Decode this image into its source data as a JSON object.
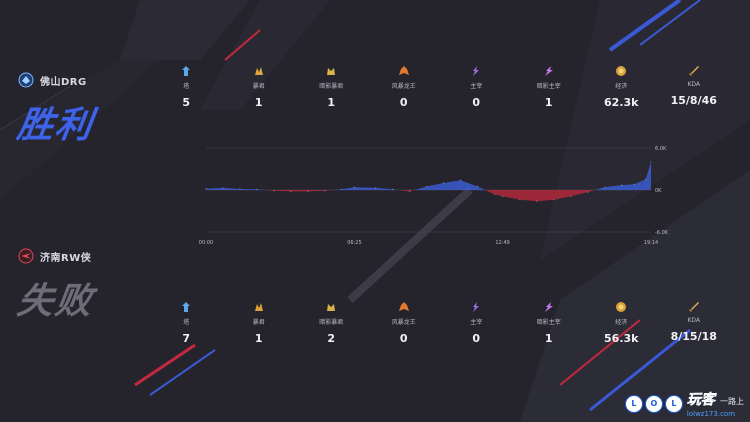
{
  "team_win": {
    "name": "佛山DRG",
    "result": "胜利",
    "logo": "drg-logo-icon"
  },
  "team_lose": {
    "name": "济南RW侠",
    "result": "失败",
    "logo": "rw-logo-icon"
  },
  "stat_labels": [
    "塔",
    "暴君",
    "暗影暴君",
    "风暴龙王",
    "主宰",
    "暗影主宰",
    "经济",
    "KDA"
  ],
  "stat_icons": [
    "tower-icon",
    "tyrant-icon",
    "shadow-tyrant-icon",
    "storm-dragon-icon",
    "overlord-icon",
    "shadow-overlord-icon",
    "gold-coin-icon",
    "sword-icon"
  ],
  "stats_win": [
    "5",
    "1",
    "1",
    "0",
    "0",
    "1",
    "62.3k",
    "15/8/46"
  ],
  "stats_lose": [
    "7",
    "1",
    "2",
    "0",
    "0",
    "1",
    "56.3k",
    "8/15/18"
  ],
  "colors": {
    "win": "#3f63e6",
    "lose": "#c4283c",
    "background": "#25242d"
  },
  "chart_data": {
    "type": "area",
    "title": "",
    "xlabel": "",
    "ylabel": "",
    "x_ticks": [
      "00:00",
      "06:25",
      "12:49",
      "19:14"
    ],
    "y_ticks": [
      "6.0K",
      "0K",
      "-6.0K"
    ],
    "ylim": [
      -6000,
      6000
    ],
    "grid": true,
    "series": [
      {
        "x": [
          "00:00",
          "00:44",
          "01:28",
          "02:12",
          "02:56",
          "03:40",
          "04:24",
          "05:08",
          "05:52",
          "06:25",
          "07:20",
          "08:04",
          "08:48",
          "09:32",
          "10:16",
          "11:00",
          "11:44",
          "12:28",
          "12:49",
          "13:34",
          "14:18",
          "15:02",
          "15:46",
          "16:30",
          "17:14",
          "17:58",
          "18:30",
          "19:00",
          "19:14"
        ],
        "values": [
          200,
          300,
          150,
          100,
          -100,
          -200,
          -200,
          -100,
          100,
          400,
          300,
          100,
          -200,
          500,
          1000,
          1400,
          500,
          -600,
          -900,
          -1400,
          -1600,
          -1400,
          -900,
          -300,
          400,
          700,
          800,
          1500,
          4000
        ]
      }
    ]
  },
  "watermark": {
    "circles": [
      "L",
      "O",
      "L"
    ],
    "brand": "玩客",
    "sub": "一路上",
    "url": "lolwz173.com"
  }
}
